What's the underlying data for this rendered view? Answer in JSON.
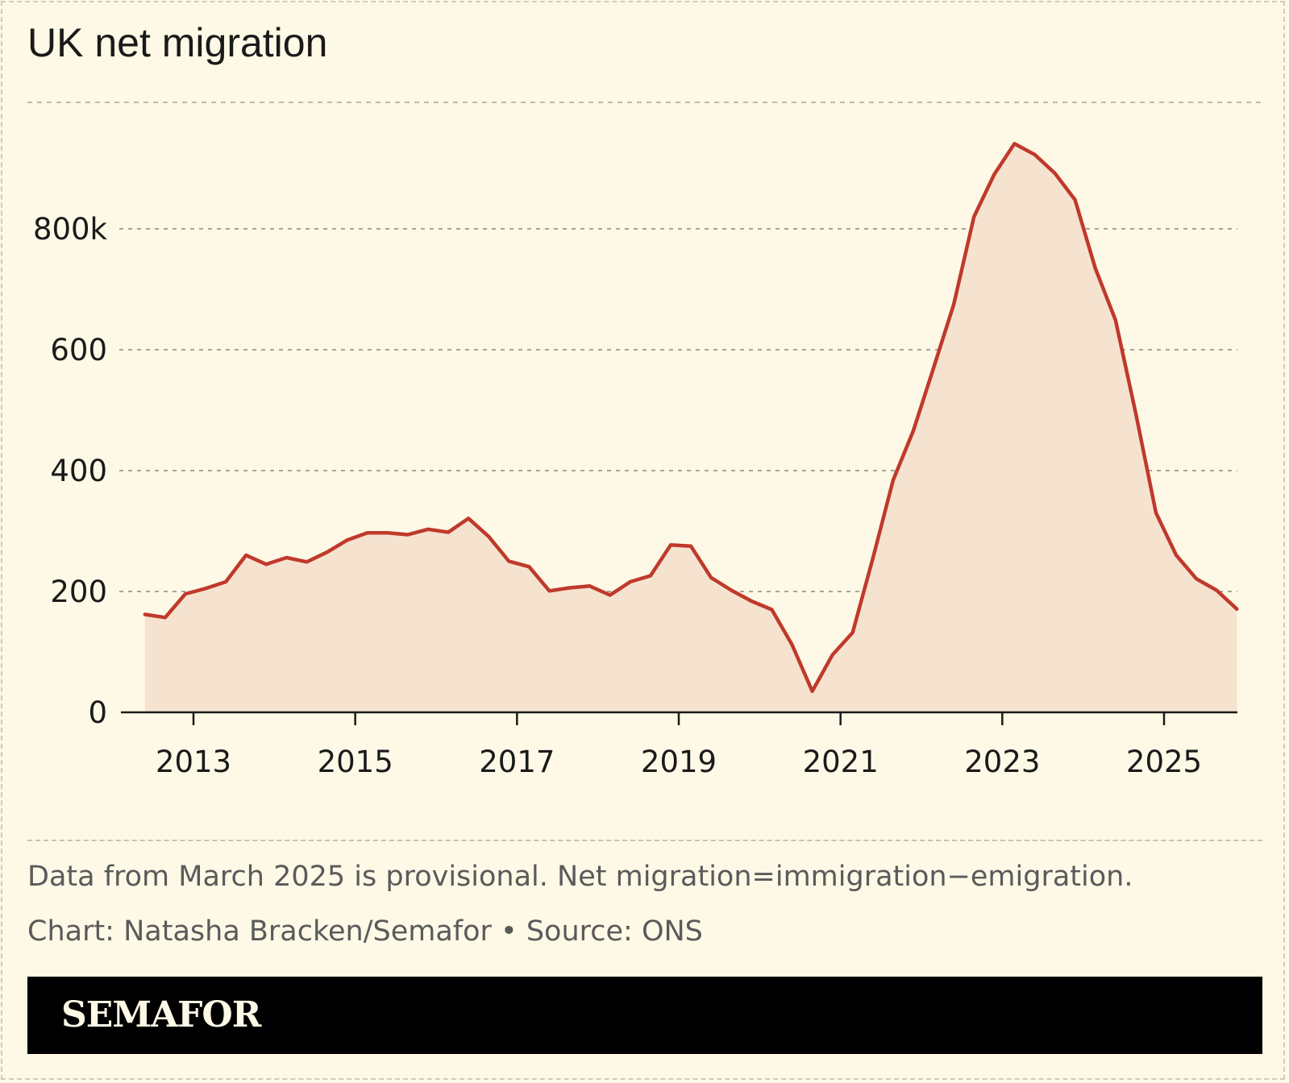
{
  "title": "UK net migration",
  "note": "Data from March 2025 is provisional. Net migration=immigration−emigration.",
  "credit": "Chart: Natasha Bracken/Semafor • Source: ONS",
  "brand": "SEMAFOR",
  "colors": {
    "background": "#fdf9e6",
    "line": "#c0392b",
    "area": "#f5e3d0",
    "brand_bar": "#000000"
  },
  "chart_data": {
    "type": "area",
    "title": "UK net migration",
    "xlabel": "",
    "ylabel": "",
    "xlim": [
      2012.0,
      2026.0
    ],
    "ylim": [
      0,
      1000
    ],
    "grid": true,
    "y_ticks": [
      {
        "value": 0,
        "label": "0"
      },
      {
        "value": 200,
        "label": "200"
      },
      {
        "value": 400,
        "label": "400"
      },
      {
        "value": 600,
        "label": "600"
      },
      {
        "value": 800,
        "label": "800k"
      }
    ],
    "x_ticks": [
      {
        "value": 2013,
        "label": "2013"
      },
      {
        "value": 2015,
        "label": "2015"
      },
      {
        "value": 2017,
        "label": "2017"
      },
      {
        "value": 2019,
        "label": "2019"
      },
      {
        "value": 2021,
        "label": "2021"
      },
      {
        "value": 2023,
        "label": "2023"
      },
      {
        "value": 2025,
        "label": "2025"
      }
    ],
    "series": [
      {
        "x": [
          2012.4,
          2012.65,
          2012.9,
          2013.15,
          2013.4,
          2013.65,
          2013.9,
          2014.15,
          2014.4,
          2014.65,
          2014.9,
          2015.15,
          2015.4,
          2015.65,
          2015.9,
          2016.15,
          2016.4,
          2016.65,
          2016.9,
          2017.15,
          2017.4,
          2017.65,
          2017.9,
          2018.15,
          2018.4,
          2018.65,
          2018.9,
          2019.15,
          2019.4,
          2019.65,
          2019.9,
          2020.15,
          2020.4,
          2020.65,
          2020.9,
          2021.15,
          2021.4,
          2021.65,
          2021.9,
          2022.15,
          2022.4,
          2022.65,
          2022.9,
          2023.15,
          2023.4,
          2023.65,
          2023.9,
          2024.15,
          2024.4,
          2024.65,
          2024.9,
          2025.15,
          2025.4,
          2025.65,
          2025.9
        ],
        "values": [
          162,
          157,
          196,
          205,
          216,
          260,
          245,
          256,
          249,
          265,
          285,
          297,
          297,
          294,
          303,
          298,
          321,
          291,
          250,
          241,
          201,
          206,
          209,
          194,
          216,
          226,
          277,
          275,
          223,
          202,
          184,
          170,
          112,
          35,
          95,
          132,
          255,
          384,
          466,
          570,
          675,
          820,
          890,
          941,
          923,
          892,
          848,
          735,
          649,
          495,
          330,
          260,
          221,
          202,
          171
        ]
      }
    ]
  }
}
